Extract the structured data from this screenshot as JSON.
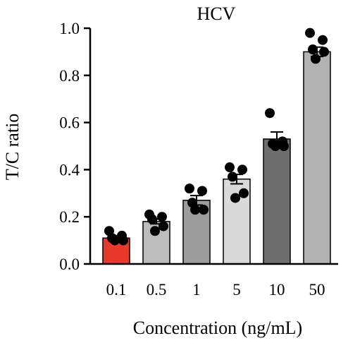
{
  "chart_data": {
    "type": "bar",
    "title": "HCV",
    "xlabel": "Concentration (ng/mL)",
    "ylabel": "T/C ratio",
    "categories": [
      "0.1",
      "0.5",
      "1",
      "5",
      "10",
      "50"
    ],
    "values": [
      0.11,
      0.18,
      0.27,
      0.36,
      0.53,
      0.9
    ],
    "errors": [
      0.01,
      0.01,
      0.02,
      0.02,
      0.03,
      0.02
    ],
    "points": [
      [
        0.14,
        0.12,
        0.11,
        0.1,
        0.1
      ],
      [
        0.21,
        0.2,
        0.19,
        0.16,
        0.14
      ],
      [
        0.32,
        0.31,
        0.26,
        0.23,
        0.23
      ],
      [
        0.41,
        0.4,
        0.37,
        0.3,
        0.28
      ],
      [
        0.64,
        0.52,
        0.51,
        0.5,
        0.5
      ],
      [
        0.98,
        0.95,
        0.91,
        0.9,
        0.87
      ]
    ],
    "bar_colors": [
      "#e8392d",
      "#bcbcbc",
      "#9d9d9d",
      "#dadada",
      "#6e6e6e",
      "#b2b2b2"
    ],
    "yticks": [
      "0.0",
      "0.2",
      "0.4",
      "0.6",
      "0.8",
      "1.0"
    ],
    "ylim": [
      0,
      1.0
    ],
    "grid": false
  }
}
